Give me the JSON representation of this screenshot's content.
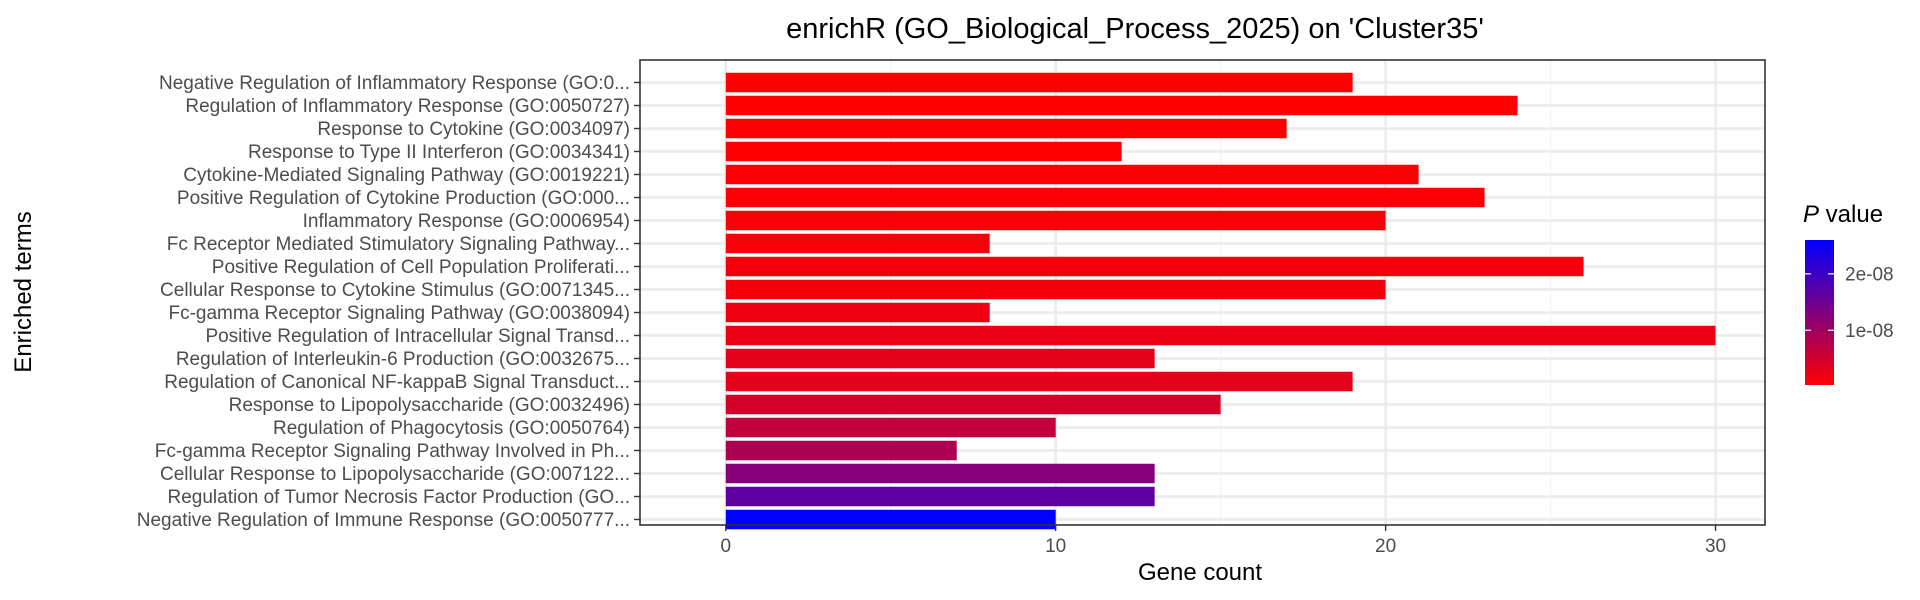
{
  "chart_data": {
    "type": "bar",
    "orientation": "horizontal",
    "title": "enrichR (GO_Biological_Process_2025) on 'Cluster35'",
    "xlabel": "Gene count",
    "ylabel": "Enriched terms",
    "xlim": [
      0,
      31.5
    ],
    "xticks": [
      0,
      10,
      20,
      30
    ],
    "grid": true,
    "legend": {
      "title_italic": "P",
      "title_rest": " value",
      "position": "right",
      "ticks": [
        {
          "label": "2e-08",
          "value": 2e-08
        },
        {
          "label": "1e-08",
          "value": 1e-08
        }
      ],
      "range": [
        3e-10,
        2.6e-08
      ],
      "color_low": "#ff0000",
      "color_high": "#0000ff"
    },
    "categories": [
      "Negative Regulation of Inflammatory Response (GO:0...",
      "Regulation of Inflammatory Response (GO:0050727)",
      "Response to Cytokine (GO:0034097)",
      "Response to Type II Interferon (GO:0034341)",
      "Cytokine-Mediated Signaling Pathway (GO:0019221)",
      "Positive Regulation of Cytokine Production (GO:000...",
      "Inflammatory Response (GO:0006954)",
      "Fc Receptor Mediated Stimulatory Signaling Pathway...",
      "Positive Regulation of Cell Population Proliferati...",
      "Cellular Response to Cytokine Stimulus (GO:0071345...",
      "Fc-gamma Receptor Signaling Pathway (GO:0038094)",
      "Positive Regulation of Intracellular Signal Transd...",
      "Regulation of Interleukin-6 Production (GO:0032675...",
      "Regulation of Canonical NF-kappaB Signal Transduct...",
      "Response to Lipopolysaccharide (GO:0032496)",
      "Regulation of Phagocytosis (GO:0050764)",
      "Fc-gamma Receptor Signaling Pathway Involved in Ph...",
      "Cellular Response to Lipopolysaccharide (GO:007122...",
      "Regulation of Tumor Necrosis Factor Production (GO...",
      "Negative Regulation of Immune Response (GO:0050777..."
    ],
    "values": [
      19,
      24,
      17,
      12,
      21,
      23,
      20,
      8,
      26,
      20,
      8,
      30,
      13,
      19,
      15,
      10,
      7,
      13,
      13,
      10
    ],
    "pvalues": [
      3e-10,
      3e-10,
      3e-10,
      5e-10,
      8e-10,
      8e-10,
      1e-09,
      1.2e-09,
      1.5e-09,
      1.5e-09,
      2e-09,
      2.5e-09,
      3e-09,
      3e-09,
      4.5e-09,
      6.5e-09,
      8.5e-09,
      1.25e-08,
      1.65e-08,
      2.6e-08
    ]
  }
}
